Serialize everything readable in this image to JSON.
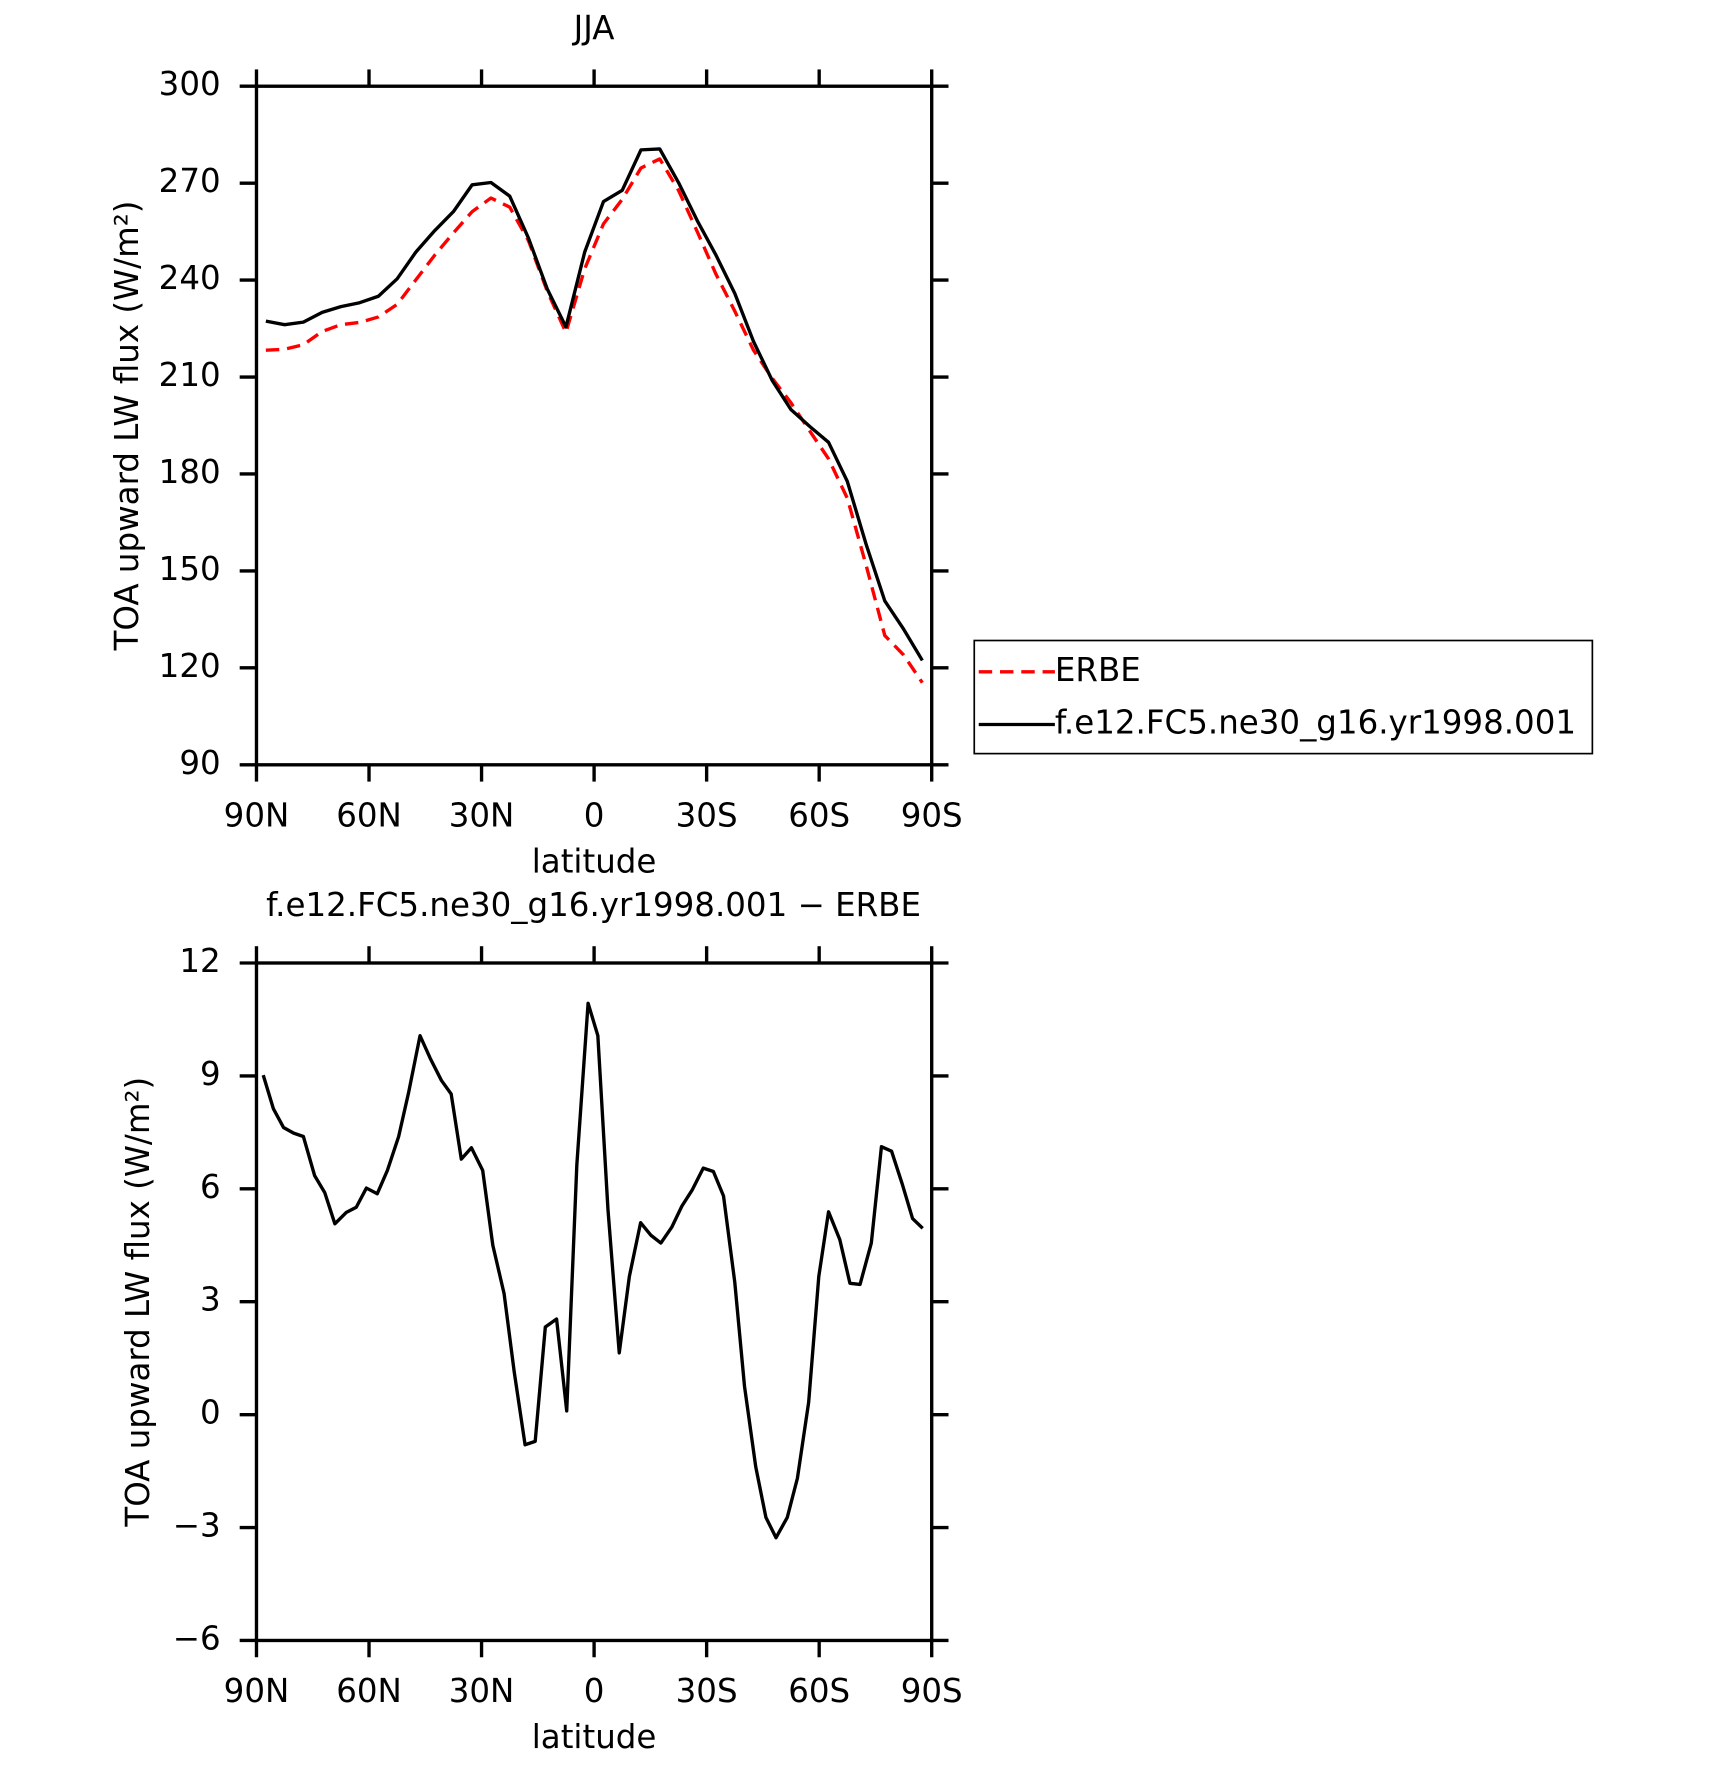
{
  "chart_data": [
    {
      "type": "line",
      "title": "JJA",
      "x_label": "latitude",
      "y_label": "TOA upward LW flux (W/m²)",
      "xlim": [
        90,
        -90
      ],
      "xticks": [
        {
          "value": 90,
          "label": "90N"
        },
        {
          "value": 60,
          "label": "60N"
        },
        {
          "value": 30,
          "label": "30N"
        },
        0,
        {
          "value": -30,
          "label": "30S"
        },
        {
          "value": -60,
          "label": "60S"
        },
        {
          "value": -90,
          "label": "90S"
        }
      ],
      "ylim": [
        90,
        300
      ],
      "yticks": [
        90,
        120,
        150,
        180,
        210,
        240,
        270,
        300
      ],
      "legend": "right",
      "x": [
        87.5,
        82.5,
        77.5,
        72.5,
        67.5,
        62.5,
        57.5,
        52.5,
        47.5,
        42.5,
        37.5,
        32.5,
        27.5,
        22.5,
        17.5,
        12.5,
        7.5,
        2.5,
        -2.5,
        -7.5,
        -12.5,
        -17.5,
        -22.5,
        -27.5,
        -32.5,
        -37.5,
        -42.5,
        -47.5,
        -52.5,
        -57.5,
        -62.5,
        -67.5,
        -72.5,
        -77.5,
        -82.5,
        -87.5
      ],
      "series": [
        {
          "name": "ERBE",
          "color": "#ff0000",
          "dash": true,
          "values": [
            218.3,
            218.6,
            220,
            224.1,
            226.2,
            226.9,
            228.6,
            232.5,
            240.1,
            247.7,
            254.6,
            261.2,
            265.4,
            262.6,
            252.2,
            236.6,
            223.8,
            243.5,
            257.4,
            265,
            274.7,
            277.5,
            267.8,
            255,
            241.8,
            230.4,
            218.3,
            209.6,
            202,
            193.3,
            184.7,
            172.5,
            151.8,
            130,
            124,
            115.4
          ]
        },
        {
          "name": "f.e12.FC5.ne30_g16.yr1998.001",
          "color": "#000000",
          "dash": false,
          "values": [
            227.3,
            226.2,
            227,
            230,
            231.8,
            233,
            235,
            240.4,
            248.7,
            255.3,
            261.2,
            269.5,
            270.2,
            266,
            253,
            237.3,
            225.5,
            248.7,
            264.3,
            267.8,
            280.3,
            280.6,
            270.2,
            258.4,
            247.7,
            235.9,
            221,
            208.9,
            199.9,
            194.7,
            189.8,
            177.7,
            158.3,
            140.7,
            132,
            122.3
          ]
        }
      ]
    },
    {
      "type": "line",
      "title": "f.e12.FC5.ne30_g16.yr1998.001 − ERBE",
      "x_label": "latitude",
      "y_label": "TOA upward LW flux (W/m²)",
      "xlim": [
        90,
        -90
      ],
      "xticks": [
        {
          "value": 90,
          "label": "90N"
        },
        {
          "value": 60,
          "label": "60N"
        },
        {
          "value": 30,
          "label": "30N"
        },
        0,
        {
          "value": -30,
          "label": "30S"
        },
        {
          "value": -60,
          "label": "60S"
        },
        {
          "value": -90,
          "label": "90S"
        }
      ],
      "ylim": [
        -6,
        12
      ],
      "yticks": [
        {
          "value": -6,
          "label": "−6"
        },
        {
          "value": -3,
          "label": "−3"
        },
        0,
        3,
        6,
        9,
        12
      ],
      "color": "#000000",
      "x": [
        88.2,
        85.5,
        82.8,
        80.1,
        77.5,
        74.5,
        71.8,
        69.1,
        66.1,
        63.4,
        60.7,
        57.8,
        55.1,
        52.1,
        49.4,
        46.4,
        43.7,
        40.7,
        38.1,
        35.4,
        32.7,
        29.7,
        27,
        24,
        21.3,
        18.4,
        15.7,
        13,
        10,
        7.3,
        4.6,
        1.6,
        -1,
        -3.7,
        -6.7,
        -9.4,
        -12.4,
        -15.1,
        -17.8,
        -20.7,
        -23.4,
        -26.1,
        -29.1,
        -31.8,
        -34.5,
        -37.5,
        -40.1,
        -43.1,
        -45.8,
        -48.5,
        -51.5,
        -54.2,
        -57.2,
        -59.9,
        -62.5,
        -65.5,
        -68.2,
        -70.9,
        -73.9,
        -76.6,
        -79.3,
        -82.2,
        -84.9,
        -87.6
      ],
      "values": [
        9.02,
        8.13,
        7.63,
        7.48,
        7.39,
        6.35,
        5.9,
        5.07,
        5.37,
        5.51,
        6.02,
        5.87,
        6.49,
        7.39,
        8.58,
        10.07,
        9.47,
        8.88,
        8.52,
        6.79,
        7.09,
        6.49,
        4.5,
        3.22,
        1.14,
        -0.8,
        -0.71,
        2.33,
        2.54,
        0.1,
        6.64,
        10.93,
        10.07,
        5.45,
        1.64,
        3.67,
        5.1,
        4.77,
        4.56,
        4.98,
        5.54,
        5.96,
        6.55,
        6.46,
        5.81,
        3.52,
        0.75,
        -1.39,
        -2.73,
        -3.27,
        -2.73,
        -1.69,
        0.33,
        3.67,
        5.39,
        4.65,
        3.49,
        3.46,
        4.56,
        7.12,
        7,
        6.11,
        5.21,
        4.95
      ]
    }
  ]
}
